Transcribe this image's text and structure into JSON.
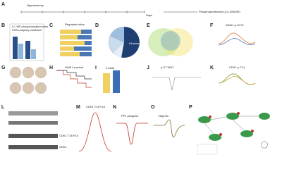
{
  "panels": [
    "A",
    "B",
    "C",
    "D",
    "E",
    "F",
    "G",
    "H",
    "I",
    "J",
    "K",
    "L",
    "M",
    "N",
    "O",
    "P"
  ],
  "a": {
    "start": "Nephrectomy",
    "unit": "Days",
    "end": "Phosphoproteomics (LC-MS/MS)"
  },
  "b": {
    "legend": [
      "LC-MS phosphorylation sites",
      "KSS-uniquely predicted"
    ]
  },
  "c": {
    "title": "Regulated sites"
  },
  "d": {
    "largest": "Kinases"
  },
  "f": {
    "title": "WNK1 p-S174"
  },
  "h": {
    "title": "WNK1 survival"
  },
  "i": {
    "value": "0.0182"
  },
  "j": {
    "title": "p-S7 WNT"
  },
  "k": {
    "title": "CDK1 p-T14"
  },
  "l": {
    "rows": [
      "CDK1 T14/Y15",
      "CDK1"
    ]
  },
  "m": {
    "title": "CDK1 T14/Y15"
  },
  "n": {
    "title": "PP1 phospho"
  },
  "o": {
    "title": "Nephrin"
  }
}
